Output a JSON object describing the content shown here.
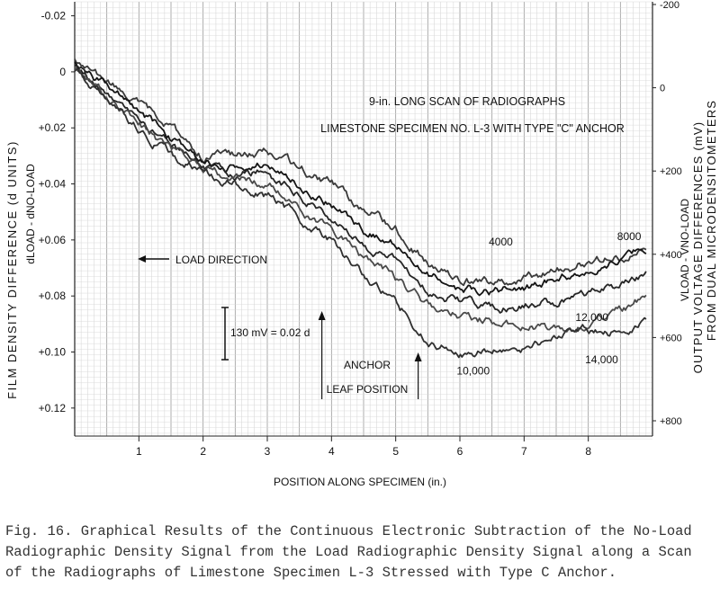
{
  "chart_data": {
    "type": "line",
    "title_lines": [
      "9-in. LONG SCAN OF RADIOGRAPHS",
      "LIMESTONE SPECIMEN NO. L-3 WITH TYPE \"C\" ANCHOR"
    ],
    "xlabel": "POSITION ALONG SPECIMEN (in.)",
    "ylabel_left_line1": "FILM DENSITY DIFFERENCE (d UNITS)",
    "ylabel_left_line2": "dLOAD - dNO-LOAD",
    "ylabel_right_line1": "VLOAD - VNO-LOAD",
    "ylabel_right_line2": "OUTPUT VOLTAGE DIFFERENCES (mV)",
    "ylabel_right_line3": "FROM DUAL MICRODENSITOMETERS",
    "xlim": [
      0,
      9.0
    ],
    "ylim_left": [
      -0.025,
      0.13
    ],
    "ylim_right": [
      -200,
      800
    ],
    "x_ticks": [
      "1",
      "2",
      "3",
      "4",
      "5",
      "6",
      "7",
      "8"
    ],
    "y_left_ticks": [
      "-0.02",
      "0",
      "+0.02",
      "+0.04",
      "+0.06",
      "+0.08",
      "+0.10",
      "+0.12"
    ],
    "y_right_ticks": [
      "-200",
      "0",
      "+200",
      "+400",
      "+600",
      "+800"
    ],
    "grid": true,
    "annotations": {
      "load_direction": "LOAD DIRECTION",
      "scale_bar": "130 mV = 0.02 d",
      "anchor_line1": "ANCHOR",
      "anchor_line2": "LEAF POSITION",
      "anchor_marks_x": [
        3.85,
        5.35
      ]
    },
    "series": [
      {
        "name": "4000",
        "label_pos": [
          6.45,
          0.062
        ],
        "x": [
          0,
          0.5,
          1,
          1.5,
          2,
          2.5,
          3,
          3.5,
          4,
          4.5,
          5,
          5.5,
          6,
          6.5,
          7,
          7.5,
          8,
          8.5,
          8.9
        ],
        "y": [
          -0.004,
          0.004,
          0.012,
          0.02,
          0.03,
          0.03,
          0.028,
          0.035,
          0.04,
          0.05,
          0.055,
          0.068,
          0.074,
          0.076,
          0.073,
          0.071,
          0.068,
          0.066,
          0.063
        ]
      },
      {
        "name": "8000",
        "label_pos": [
          8.45,
          0.06
        ],
        "x": [
          0,
          0.5,
          1,
          1.5,
          2,
          2.5,
          3,
          3.5,
          4,
          4.5,
          5,
          5.5,
          6,
          6.5,
          7,
          7.5,
          8,
          8.5,
          8.9
        ],
        "y": [
          -0.003,
          0.005,
          0.014,
          0.024,
          0.031,
          0.034,
          0.032,
          0.04,
          0.047,
          0.056,
          0.062,
          0.072,
          0.077,
          0.079,
          0.077,
          0.074,
          0.07,
          0.066,
          0.062
        ]
      },
      {
        "name": "12,000",
        "label_pos": [
          7.8,
          0.089
        ],
        "x": [
          0,
          0.5,
          1,
          1.5,
          2,
          2.5,
          3,
          3.5,
          4,
          4.5,
          5,
          5.5,
          6,
          6.5,
          7,
          7.5,
          8,
          8.5,
          8.9
        ],
        "y": [
          -0.002,
          0.008,
          0.016,
          0.026,
          0.034,
          0.036,
          0.036,
          0.044,
          0.052,
          0.062,
          0.068,
          0.078,
          0.082,
          0.084,
          0.083,
          0.082,
          0.08,
          0.076,
          0.072
        ]
      },
      {
        "name": "14,000",
        "label_pos": [
          7.95,
          0.104
        ],
        "x": [
          0,
          0.5,
          1,
          1.5,
          2,
          2.5,
          3,
          3.5,
          4,
          4.5,
          5,
          5.5,
          6,
          6.5,
          7,
          7.5,
          8,
          8.5,
          8.9
        ],
        "y": [
          -0.001,
          0.009,
          0.018,
          0.028,
          0.035,
          0.038,
          0.04,
          0.048,
          0.056,
          0.066,
          0.074,
          0.083,
          0.087,
          0.089,
          0.09,
          0.092,
          0.09,
          0.086,
          0.08
        ]
      },
      {
        "name": "10,000",
        "label_pos": [
          5.95,
          0.108
        ],
        "x": [
          0,
          0.5,
          1,
          1.5,
          2,
          2.5,
          3,
          3.5,
          4,
          4.5,
          5,
          5.5,
          6,
          6.5,
          7,
          7.5,
          8,
          8.5,
          8.9
        ],
        "y": [
          0.0,
          0.01,
          0.02,
          0.03,
          0.036,
          0.04,
          0.044,
          0.052,
          0.06,
          0.072,
          0.082,
          0.096,
          0.1,
          0.1,
          0.098,
          0.095,
          0.092,
          0.093,
          0.09
        ]
      }
    ]
  },
  "caption": "Fig. 16.  Graphical Results of the Continuous Electronic Subtraction of the No-Load Radiographic Density Signal from the Load Radiographic Density Signal along a Scan of the Radiographs of Limestone Specimen L-3 Stressed with Type C Anchor."
}
